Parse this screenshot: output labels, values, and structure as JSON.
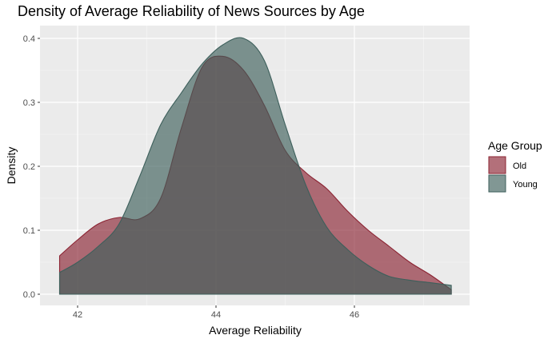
{
  "chart_data": {
    "type": "area",
    "title": "Density of Average Reliability of News Sources by Age",
    "xlabel": "Average Reliability",
    "ylabel": "Density",
    "xlim": [
      41.7,
      47.4
    ],
    "ylim": [
      0,
      0.4
    ],
    "xticks": [
      42,
      44,
      46
    ],
    "yticks": [
      0.0,
      0.1,
      0.2,
      0.3,
      0.4
    ],
    "ytick_labels": [
      "0.0",
      "0.1",
      "0.2",
      "0.3",
      "0.4"
    ],
    "grid": true,
    "legend": {
      "title": "Age Group",
      "position": "right"
    },
    "series": [
      {
        "name": "Old",
        "color": "#8b2332",
        "x": [
          41.74,
          42.0,
          42.3,
          42.6,
          42.9,
          43.2,
          43.5,
          43.8,
          44.1,
          44.4,
          44.7,
          45.0,
          45.3,
          45.6,
          45.9,
          46.2,
          46.5,
          46.8,
          47.1,
          47.4
        ],
        "y": [
          0.06,
          0.085,
          0.11,
          0.12,
          0.118,
          0.15,
          0.26,
          0.355,
          0.372,
          0.35,
          0.295,
          0.225,
          0.19,
          0.165,
          0.13,
          0.1,
          0.075,
          0.05,
          0.03,
          0.007
        ]
      },
      {
        "name": "Young",
        "color": "#3d5f5b",
        "x": [
          41.74,
          42.0,
          42.3,
          42.6,
          42.9,
          43.2,
          43.5,
          43.8,
          44.1,
          44.4,
          44.7,
          45.0,
          45.3,
          45.6,
          45.9,
          46.2,
          46.5,
          46.8,
          47.1,
          47.4
        ],
        "y": [
          0.034,
          0.05,
          0.075,
          0.11,
          0.185,
          0.265,
          0.315,
          0.36,
          0.39,
          0.4,
          0.365,
          0.265,
          0.17,
          0.105,
          0.07,
          0.045,
          0.028,
          0.022,
          0.018,
          0.014
        ]
      }
    ]
  }
}
